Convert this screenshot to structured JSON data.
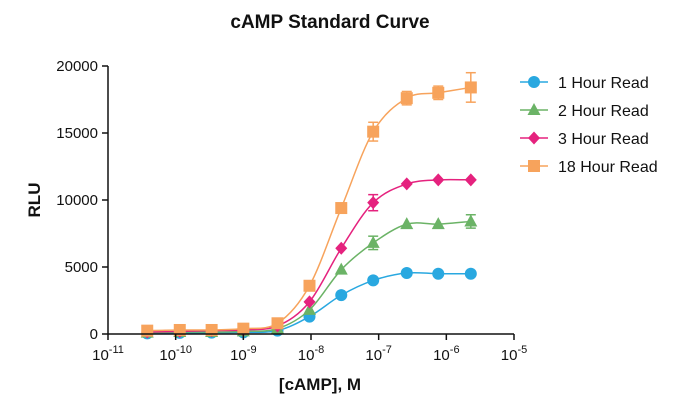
{
  "chart_data": {
    "type": "scatter",
    "title": "cAMP Standard Curve",
    "xlabel": "[cAMP], M",
    "ylabel": "RLU",
    "xscale": "log",
    "xlim": [
      1e-11,
      1e-05
    ],
    "ylim": [
      0,
      20000
    ],
    "x_tick_labels": [
      {
        "base": "10",
        "exp": "-11"
      },
      {
        "base": "10",
        "exp": "-10"
      },
      {
        "base": "10",
        "exp": "-9"
      },
      {
        "base": "10",
        "exp": "-8"
      },
      {
        "base": "10",
        "exp": "-7"
      },
      {
        "base": "10",
        "exp": "-6"
      },
      {
        "base": "10",
        "exp": "-5"
      }
    ],
    "y_tick_labels": [
      "0",
      "5000",
      "10000",
      "15000",
      "20000"
    ],
    "x": [
      3.8e-11,
      1.15e-10,
      3.4e-10,
      1e-09,
      3.2e-09,
      9.5e-09,
      2.8e-08,
      8.3e-08,
      2.6e-07,
      7.6e-07,
      2.3e-06
    ],
    "legend_position": "right",
    "grid": false,
    "series": [
      {
        "name": "1 Hour Read",
        "color": "#29A8E0",
        "marker": "circle",
        "values": [
          50,
          80,
          100,
          120,
          250,
          1300,
          2900,
          4000,
          4550,
          4500,
          4500
        ],
        "errors": [
          0,
          0,
          0,
          0,
          0,
          0,
          0,
          200,
          0,
          0,
          0
        ]
      },
      {
        "name": "2 Hour Read",
        "color": "#6BB366",
        "marker": "triangle",
        "values": [
          100,
          150,
          150,
          200,
          400,
          1800,
          4800,
          6800,
          8200,
          8200,
          8400
        ],
        "errors": [
          0,
          0,
          0,
          0,
          0,
          0,
          0,
          500,
          0,
          0,
          500
        ]
      },
      {
        "name": "3 Hour Read",
        "color": "#E5227E",
        "marker": "diamond",
        "values": [
          150,
          200,
          250,
          300,
          600,
          2400,
          6400,
          9800,
          11200,
          11500,
          11500
        ],
        "errors": [
          0,
          0,
          0,
          0,
          0,
          0,
          0,
          600,
          0,
          0,
          0
        ]
      },
      {
        "name": "18 Hour Read",
        "color": "#F7A35C",
        "marker": "square",
        "values": [
          250,
          300,
          300,
          400,
          800,
          3600,
          9400,
          15100,
          17600,
          18000,
          18400
        ],
        "errors": [
          0,
          0,
          0,
          0,
          0,
          0,
          0,
          700,
          500,
          500,
          1100
        ]
      }
    ]
  }
}
